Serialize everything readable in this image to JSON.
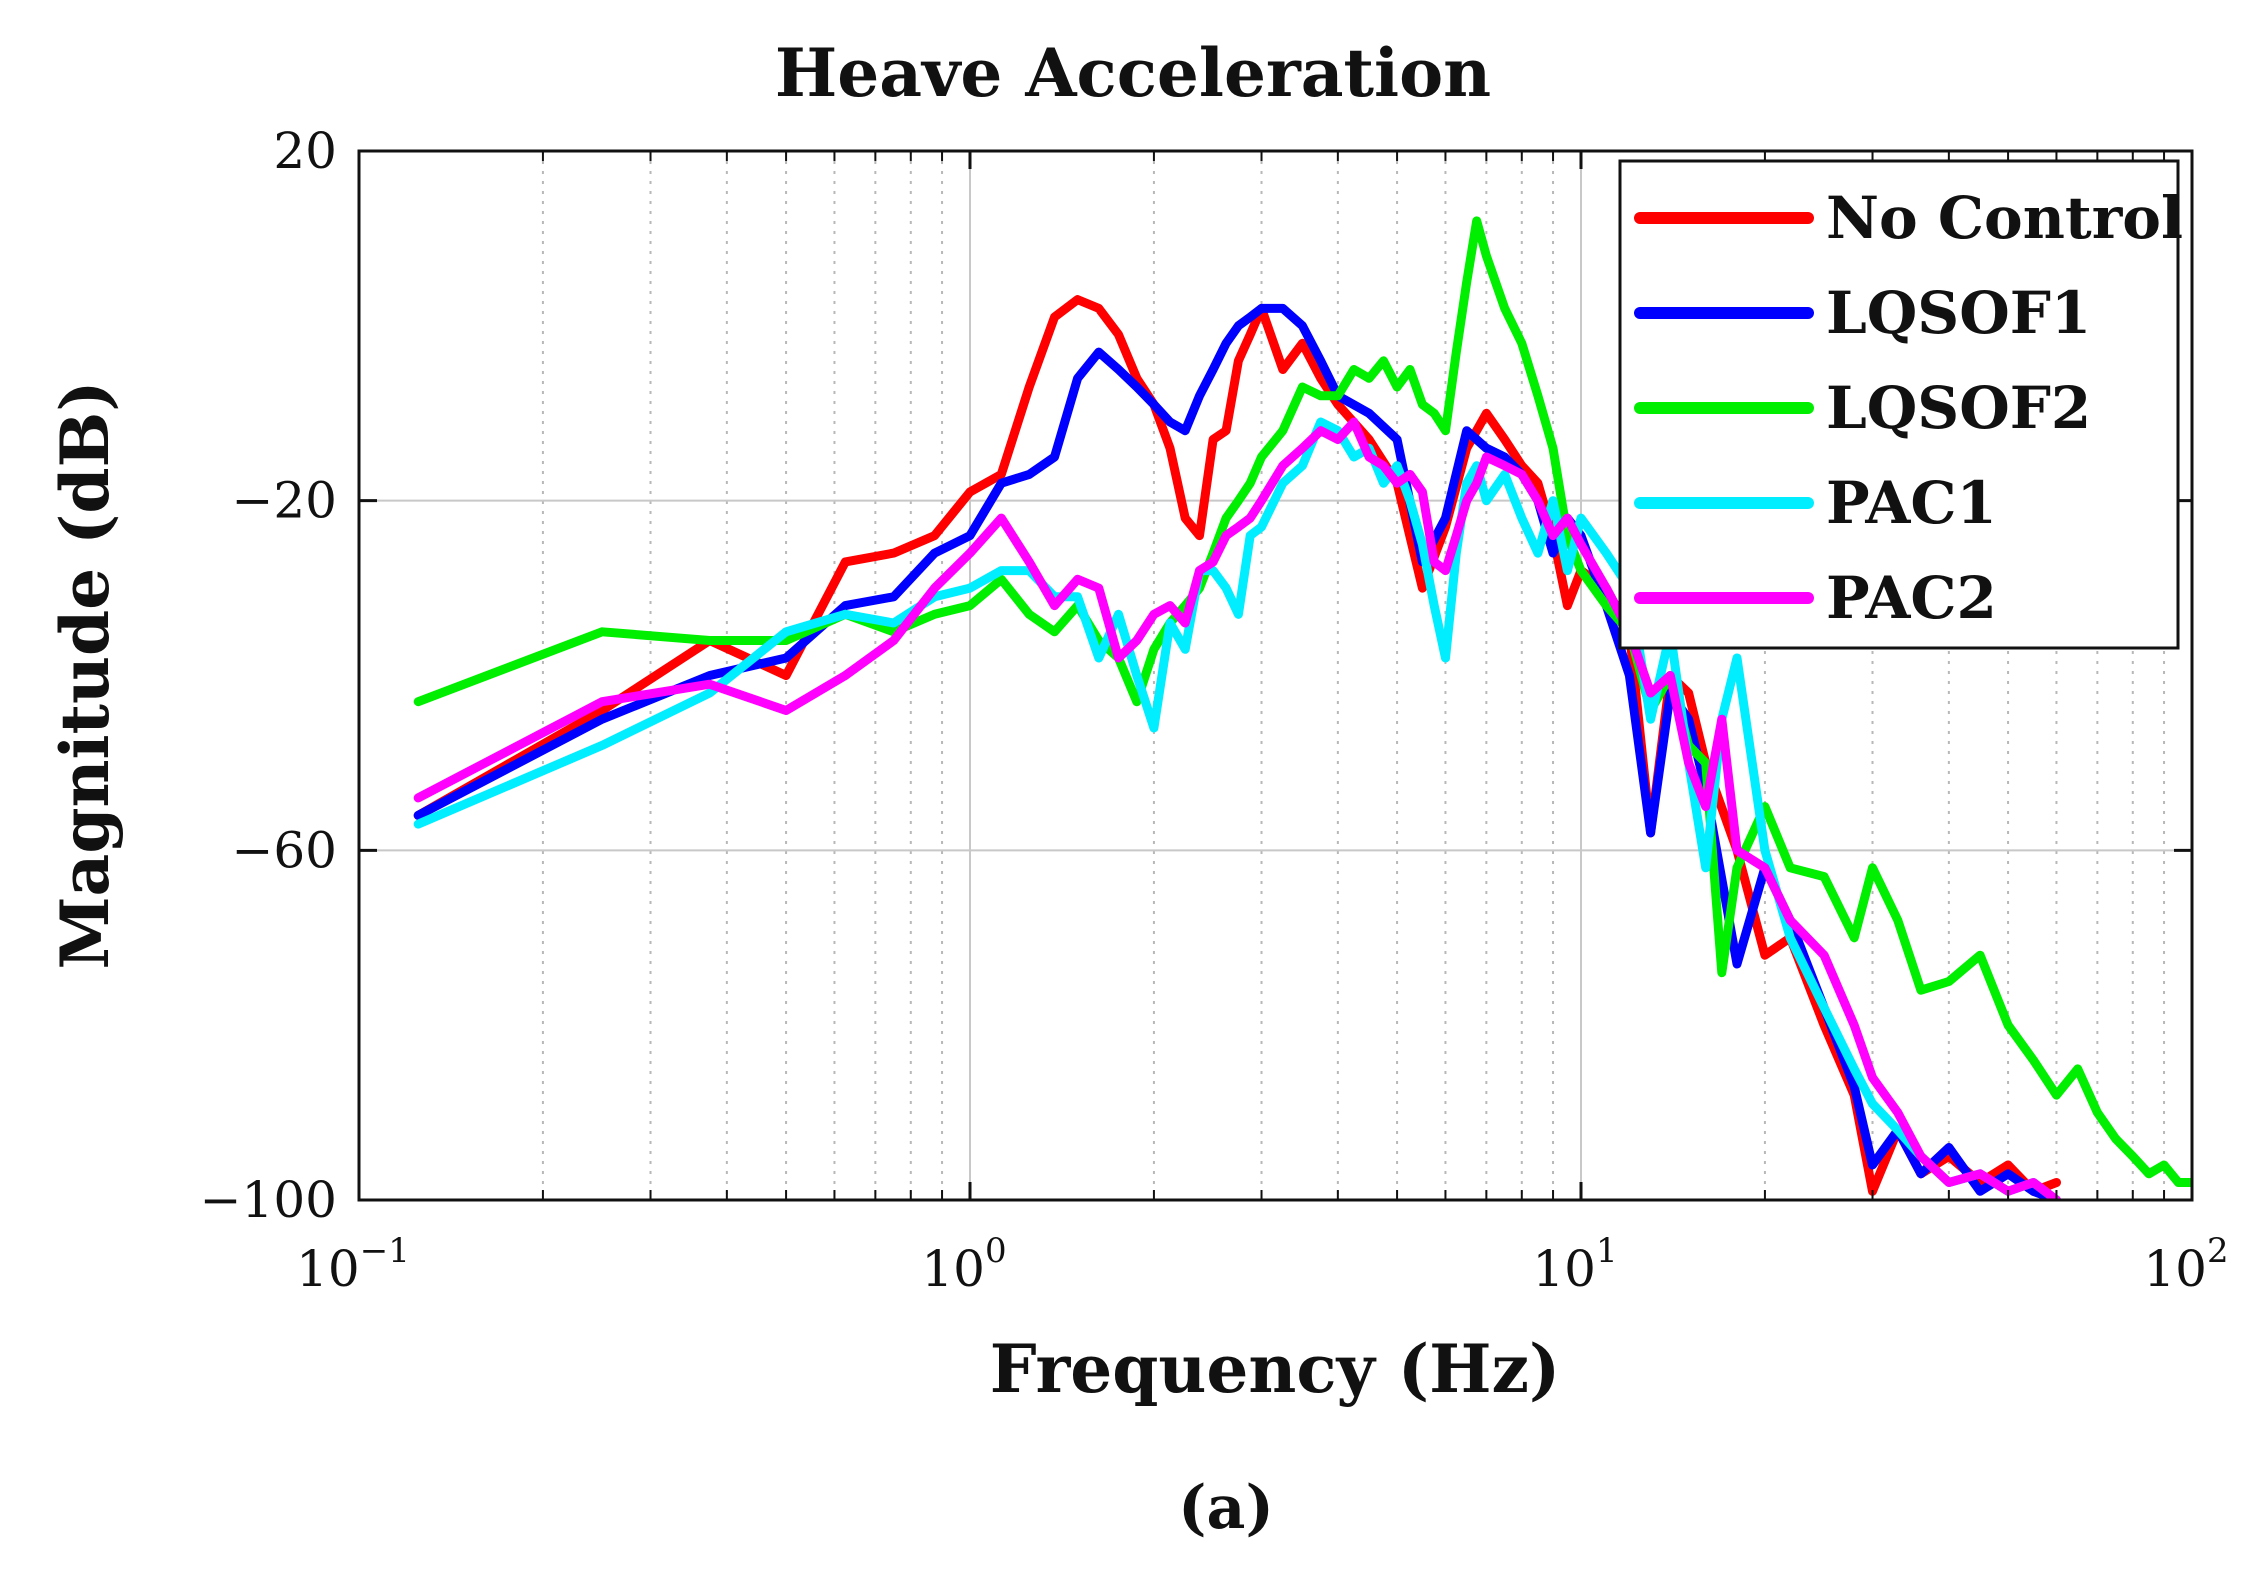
{
  "figure": {
    "caption": "(a)"
  },
  "chart_data": {
    "type": "line",
    "title": "Heave Acceleration",
    "xlabel": "Frequency (Hz)",
    "ylabel": "Magnitude (dB)",
    "xscale": "log",
    "xlim": [
      0.1,
      100
    ],
    "ylim": [
      -100,
      20
    ],
    "grid": true,
    "legend_position": "top-right",
    "x_ticks": [
      {
        "value": 0.1,
        "base": "10",
        "exp": "−1"
      },
      {
        "value": 1,
        "base": "10",
        "exp": "0"
      },
      {
        "value": 10,
        "base": "10",
        "exp": "1"
      },
      {
        "value": 100,
        "base": "10",
        "exp": "2"
      }
    ],
    "y_ticks": [
      {
        "value": 20,
        "label": "20"
      },
      {
        "value": -20,
        "label": "−20"
      },
      {
        "value": -60,
        "label": "−60"
      },
      {
        "value": -100,
        "label": "−100"
      }
    ],
    "series": [
      {
        "name": "No Control",
        "color": "#ff0000",
        "x": [
          0.125,
          0.25,
          0.375,
          0.5,
          0.625,
          0.75,
          0.875,
          1.0,
          1.125,
          1.25,
          1.375,
          1.5,
          1.625,
          1.75,
          1.875,
          2.0,
          2.125,
          2.25,
          2.375,
          2.5,
          2.625,
          2.75,
          2.875,
          3.0,
          3.25,
          3.5,
          3.75,
          4.0,
          4.5,
          5.0,
          5.5,
          6.0,
          6.5,
          7.0,
          7.5,
          8.0,
          8.5,
          9.0,
          9.5,
          10,
          11,
          12,
          13,
          14,
          15,
          16,
          18,
          20,
          22,
          25,
          28,
          30,
          33,
          36,
          40,
          45,
          50,
          55,
          60
        ],
        "values": [
          -56,
          -44,
          -36,
          -40,
          -27,
          -26,
          -24,
          -19,
          -17,
          -7,
          1,
          3,
          2,
          -1,
          -6,
          -9,
          -14,
          -22,
          -24,
          -13,
          -12,
          -4,
          -1,
          2,
          -5,
          -2,
          -6,
          -9,
          -13,
          -18,
          -30,
          -23,
          -14,
          -10,
          -13,
          -16,
          -18,
          -24,
          -32,
          -28,
          -30,
          -35,
          -58,
          -40,
          -42,
          -50,
          -60,
          -72,
          -70,
          -80,
          -88,
          -99,
          -92,
          -97,
          -95,
          -98,
          -96,
          -99,
          -98
        ]
      },
      {
        "name": "LQSOF1",
        "color": "#0000ff",
        "x": [
          0.125,
          0.25,
          0.375,
          0.5,
          0.625,
          0.75,
          0.875,
          1.0,
          1.125,
          1.25,
          1.375,
          1.5,
          1.625,
          1.75,
          1.875,
          2.0,
          2.125,
          2.25,
          2.375,
          2.5,
          2.625,
          2.75,
          2.875,
          3.0,
          3.25,
          3.5,
          3.75,
          4.0,
          4.5,
          5.0,
          5.5,
          6.0,
          6.5,
          7.0,
          7.5,
          8.0,
          8.5,
          9.0,
          9.5,
          10,
          11,
          12,
          13,
          14,
          15,
          16,
          18,
          20,
          22,
          25,
          28,
          30,
          33,
          36,
          40,
          45,
          50,
          55,
          60
        ],
        "values": [
          -56,
          -45,
          -40,
          -38,
          -32,
          -31,
          -26,
          -24,
          -18,
          -17,
          -15,
          -6,
          -3,
          -5,
          -7,
          -9,
          -11,
          -12,
          -8,
          -5,
          -2,
          0,
          1,
          2,
          2,
          0,
          -4,
          -8,
          -10,
          -13,
          -27,
          -22,
          -12,
          -14,
          -15,
          -17,
          -20,
          -26,
          -22,
          -24,
          -32,
          -40,
          -58,
          -42,
          -45,
          -53,
          -73,
          -62,
          -68,
          -78,
          -87,
          -96,
          -92,
          -97,
          -94,
          -99,
          -97,
          -99,
          -100
        ]
      },
      {
        "name": "LQSOF2",
        "color": "#00ee00",
        "x": [
          0.125,
          0.25,
          0.375,
          0.5,
          0.625,
          0.75,
          0.875,
          1.0,
          1.125,
          1.25,
          1.375,
          1.5,
          1.625,
          1.75,
          1.875,
          2.0,
          2.125,
          2.25,
          2.375,
          2.5,
          2.625,
          2.75,
          2.875,
          3.0,
          3.25,
          3.5,
          3.75,
          4.0,
          4.25,
          4.5,
          4.75,
          5.0,
          5.25,
          5.5,
          5.75,
          6.0,
          6.25,
          6.5,
          6.75,
          7.0,
          7.5,
          8.0,
          8.5,
          9.0,
          9.5,
          10,
          11,
          12,
          13,
          14,
          15,
          16,
          17,
          18,
          20,
          22,
          25,
          28,
          30,
          33,
          36,
          40,
          45,
          50,
          55,
          60,
          65,
          70,
          75,
          80,
          85,
          90,
          95,
          100
        ],
        "values": [
          -43,
          -35,
          -36,
          -36,
          -33,
          -35,
          -33,
          -32,
          -29,
          -33,
          -35,
          -32,
          -36,
          -38,
          -43,
          -37,
          -34,
          -32,
          -30,
          -26,
          -22,
          -20,
          -18,
          -15,
          -12,
          -7,
          -8,
          -8,
          -5,
          -6,
          -4,
          -7,
          -5,
          -9,
          -10,
          -12,
          -3,
          5,
          12,
          8,
          2,
          -2,
          -8,
          -14,
          -24,
          -28,
          -32,
          -35,
          -44,
          -40,
          -48,
          -50,
          -74,
          -62,
          -55,
          -62,
          -63,
          -70,
          -62,
          -68,
          -76,
          -75,
          -72,
          -80,
          -84,
          -88,
          -85,
          -90,
          -93,
          -95,
          -97,
          -96,
          -98,
          -98
        ]
      },
      {
        "name": "PAC1",
        "color": "#00eeff",
        "x": [
          0.125,
          0.25,
          0.375,
          0.5,
          0.625,
          0.75,
          0.875,
          1.0,
          1.125,
          1.25,
          1.375,
          1.5,
          1.625,
          1.75,
          1.875,
          2.0,
          2.125,
          2.25,
          2.375,
          2.5,
          2.625,
          2.75,
          2.875,
          3.0,
          3.25,
          3.5,
          3.75,
          4.0,
          4.25,
          4.5,
          4.75,
          5.0,
          5.25,
          5.5,
          5.75,
          6.0,
          6.25,
          6.5,
          6.75,
          7.0,
          7.5,
          8.0,
          8.5,
          9.0,
          9.5,
          10,
          11,
          12,
          13,
          14,
          15,
          16,
          17,
          18,
          20,
          22,
          25,
          28,
          30,
          33,
          36,
          40,
          45,
          50,
          55,
          60
        ],
        "values": [
          -57,
          -48,
          -42,
          -35,
          -33,
          -34,
          -31,
          -30,
          -28,
          -28,
          -31,
          -31,
          -38,
          -33,
          -40,
          -46,
          -34,
          -37,
          -28,
          -28,
          -30,
          -33,
          -24,
          -23,
          -18,
          -16,
          -11,
          -12,
          -15,
          -14,
          -18,
          -16,
          -20,
          -25,
          -32,
          -38,
          -26,
          -18,
          -16,
          -20,
          -17,
          -22,
          -26,
          -20,
          -28,
          -22,
          -26,
          -30,
          -45,
          -35,
          -50,
          -62,
          -45,
          -38,
          -60,
          -70,
          -78,
          -85,
          -89,
          -92,
          -95,
          -98,
          -97,
          -99,
          -98,
          -100
        ]
      },
      {
        "name": "PAC2",
        "color": "#ff00ff",
        "x": [
          0.125,
          0.25,
          0.375,
          0.5,
          0.625,
          0.75,
          0.875,
          1.0,
          1.125,
          1.25,
          1.375,
          1.5,
          1.625,
          1.75,
          1.875,
          2.0,
          2.125,
          2.25,
          2.375,
          2.5,
          2.625,
          2.75,
          2.875,
          3.0,
          3.25,
          3.5,
          3.75,
          4.0,
          4.25,
          4.5,
          4.75,
          5.0,
          5.25,
          5.5,
          5.75,
          6.0,
          6.25,
          6.5,
          6.75,
          7.0,
          7.5,
          8.0,
          8.5,
          9.0,
          9.5,
          10,
          11,
          12,
          13,
          14,
          15,
          16,
          17,
          18,
          20,
          22,
          25,
          28,
          30,
          33,
          36,
          40,
          45,
          50,
          55,
          60
        ],
        "values": [
          -54,
          -43,
          -41,
          -44,
          -40,
          -36,
          -30,
          -26,
          -22,
          -27,
          -32,
          -29,
          -30,
          -38,
          -36,
          -33,
          -32,
          -34,
          -28,
          -27,
          -24,
          -23,
          -22,
          -20,
          -16,
          -14,
          -12,
          -13,
          -11,
          -15,
          -16,
          -18,
          -17,
          -19,
          -27,
          -28,
          -24,
          -20,
          -18,
          -15,
          -16,
          -17,
          -20,
          -24,
          -22,
          -25,
          -30,
          -35,
          -42,
          -40,
          -50,
          -55,
          -45,
          -60,
          -62,
          -68,
          -72,
          -80,
          -86,
          -90,
          -95,
          -98,
          -97,
          -99,
          -98,
          -100
        ]
      }
    ]
  }
}
